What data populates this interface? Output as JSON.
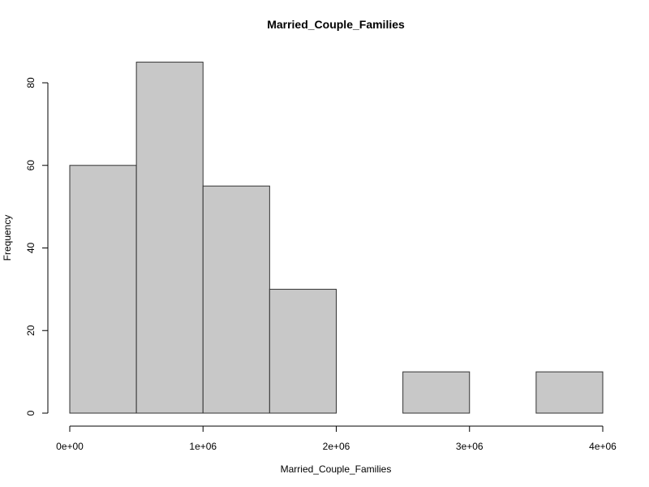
{
  "chart_data": {
    "type": "bar",
    "title": "Married_Couple_Families",
    "xlabel": "Married_Couple_Families",
    "ylabel": "Frequency",
    "bins": [
      {
        "start": 0,
        "end": 500000,
        "count": 60
      },
      {
        "start": 500000,
        "end": 1000000,
        "count": 85
      },
      {
        "start": 1000000,
        "end": 1500000,
        "count": 55
      },
      {
        "start": 1500000,
        "end": 2000000,
        "count": 30
      },
      {
        "start": 2000000,
        "end": 2500000,
        "count": 0
      },
      {
        "start": 2500000,
        "end": 3000000,
        "count": 10
      },
      {
        "start": 3000000,
        "end": 3500000,
        "count": 0
      },
      {
        "start": 3500000,
        "end": 4000000,
        "count": 10
      }
    ],
    "xlim": [
      0,
      4000000
    ],
    "ylim": [
      0,
      85
    ],
    "x_ticks": [
      {
        "value": 0,
        "label": "0e+00"
      },
      {
        "value": 1000000,
        "label": "1e+06"
      },
      {
        "value": 2000000,
        "label": "2e+06"
      },
      {
        "value": 3000000,
        "label": "3e+06"
      },
      {
        "value": 4000000,
        "label": "4e+06"
      }
    ],
    "y_ticks": [
      {
        "value": 0,
        "label": "0"
      },
      {
        "value": 20,
        "label": "20"
      },
      {
        "value": 40,
        "label": "40"
      },
      {
        "value": 60,
        "label": "60"
      },
      {
        "value": 80,
        "label": "80"
      }
    ],
    "bar_fill": "#c8c8c8",
    "bar_stroke": "#333333",
    "grid": false,
    "legend": "none"
  }
}
